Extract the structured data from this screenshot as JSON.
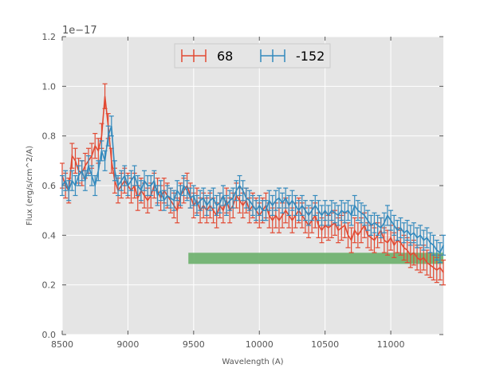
{
  "chart_data": {
    "type": "line",
    "title": "",
    "xlabel": "Wavelength (A)",
    "ylabel": "Flux (erg/s/cm^2/A)",
    "y_offset_text": "1e−17",
    "xlim": [
      8500,
      11400
    ],
    "ylim": [
      0.0,
      1.2
    ],
    "x_ticks": [
      8500,
      9000,
      9500,
      10000,
      10500,
      11000
    ],
    "x_tick_labels": [
      "8500",
      "9000",
      "9500",
      "10000",
      "10500",
      "11000"
    ],
    "y_ticks": [
      0.0,
      0.2,
      0.4,
      0.6,
      0.8,
      1.0,
      1.2
    ],
    "y_tick_labels": [
      "0.0",
      "0.2",
      "0.4",
      "0.6",
      "0.8",
      "1.0",
      "1.2"
    ],
    "grid": true,
    "legend_position": "top-center",
    "band": {
      "x_start": 9460,
      "x_end": 11400,
      "y": 0.307,
      "color": "#6aaf6a"
    },
    "series": [
      {
        "name": "68",
        "color": "#e24a33",
        "error": 0.05,
        "x": [
          8500,
          8525,
          8550,
          8575,
          8600,
          8625,
          8650,
          8675,
          8700,
          8725,
          8750,
          8775,
          8800,
          8825,
          8850,
          8875,
          8900,
          8925,
          8950,
          8975,
          9000,
          9025,
          9050,
          9075,
          9100,
          9125,
          9150,
          9175,
          9200,
          9225,
          9250,
          9275,
          9300,
          9325,
          9350,
          9375,
          9400,
          9425,
          9450,
          9475,
          9500,
          9525,
          9550,
          9575,
          9600,
          9625,
          9650,
          9675,
          9700,
          9725,
          9750,
          9775,
          9800,
          9825,
          9850,
          9875,
          9900,
          9925,
          9950,
          9975,
          10000,
          10025,
          10050,
          10075,
          10100,
          10125,
          10150,
          10175,
          10200,
          10225,
          10250,
          10275,
          10300,
          10325,
          10350,
          10375,
          10400,
          10425,
          10450,
          10475,
          10500,
          10525,
          10550,
          10575,
          10600,
          10625,
          10650,
          10675,
          10700,
          10725,
          10750,
          10775,
          10800,
          10825,
          10850,
          10875,
          10900,
          10925,
          10950,
          10975,
          11000,
          11025,
          11050,
          11075,
          11100,
          11125,
          11150,
          11175,
          11200,
          11225,
          11250,
          11275,
          11300,
          11325,
          11350,
          11375,
          11400
        ],
        "y": [
          0.64,
          0.6,
          0.58,
          0.72,
          0.7,
          0.66,
          0.65,
          0.68,
          0.7,
          0.72,
          0.76,
          0.74,
          0.8,
          0.96,
          0.84,
          0.7,
          0.62,
          0.58,
          0.6,
          0.62,
          0.6,
          0.58,
          0.6,
          0.55,
          0.58,
          0.56,
          0.54,
          0.56,
          0.6,
          0.58,
          0.55,
          0.58,
          0.56,
          0.54,
          0.52,
          0.5,
          0.56,
          0.58,
          0.6,
          0.56,
          0.52,
          0.54,
          0.5,
          0.52,
          0.5,
          0.52,
          0.5,
          0.48,
          0.52,
          0.5,
          0.54,
          0.5,
          0.52,
          0.56,
          0.54,
          0.52,
          0.54,
          0.5,
          0.52,
          0.5,
          0.48,
          0.5,
          0.52,
          0.48,
          0.46,
          0.48,
          0.46,
          0.48,
          0.5,
          0.48,
          0.46,
          0.48,
          0.5,
          0.48,
          0.46,
          0.44,
          0.46,
          0.48,
          0.44,
          0.42,
          0.44,
          0.43,
          0.44,
          0.45,
          0.42,
          0.43,
          0.44,
          0.4,
          0.38,
          0.42,
          0.4,
          0.42,
          0.44,
          0.4,
          0.39,
          0.38,
          0.4,
          0.42,
          0.38,
          0.37,
          0.39,
          0.36,
          0.38,
          0.37,
          0.35,
          0.34,
          0.32,
          0.33,
          0.31,
          0.3,
          0.31,
          0.29,
          0.28,
          0.27,
          0.26,
          0.27,
          0.25
        ]
      },
      {
        "name": "-152",
        "color": "#348abd",
        "error": 0.04,
        "x": [
          8500,
          8525,
          8550,
          8575,
          8600,
          8625,
          8650,
          8675,
          8700,
          8725,
          8750,
          8775,
          8800,
          8825,
          8850,
          8875,
          8900,
          8925,
          8950,
          8975,
          9000,
          9025,
          9050,
          9075,
          9100,
          9125,
          9150,
          9175,
          9200,
          9225,
          9250,
          9275,
          9300,
          9325,
          9350,
          9375,
          9400,
          9425,
          9450,
          9475,
          9500,
          9525,
          9550,
          9575,
          9600,
          9625,
          9650,
          9675,
          9700,
          9725,
          9750,
          9775,
          9800,
          9825,
          9850,
          9875,
          9900,
          9925,
          9950,
          9975,
          10000,
          10025,
          10050,
          10075,
          10100,
          10125,
          10150,
          10175,
          10200,
          10225,
          10250,
          10275,
          10300,
          10325,
          10350,
          10375,
          10400,
          10425,
          10450,
          10475,
          10500,
          10525,
          10550,
          10575,
          10600,
          10625,
          10650,
          10675,
          10700,
          10725,
          10750,
          10775,
          10800,
          10825,
          10850,
          10875,
          10900,
          10925,
          10950,
          10975,
          11000,
          11025,
          11050,
          11075,
          11100,
          11125,
          11150,
          11175,
          11200,
          11225,
          11250,
          11275,
          11300,
          11325,
          11350,
          11375,
          11400
        ],
        "y": [
          0.6,
          0.62,
          0.58,
          0.62,
          0.6,
          0.64,
          0.66,
          0.62,
          0.68,
          0.64,
          0.6,
          0.66,
          0.74,
          0.7,
          0.8,
          0.84,
          0.66,
          0.6,
          0.62,
          0.64,
          0.6,
          0.62,
          0.64,
          0.6,
          0.58,
          0.62,
          0.6,
          0.6,
          0.62,
          0.56,
          0.58,
          0.54,
          0.56,
          0.55,
          0.54,
          0.58,
          0.56,
          0.6,
          0.58,
          0.55,
          0.56,
          0.52,
          0.54,
          0.55,
          0.52,
          0.54,
          0.55,
          0.52,
          0.53,
          0.56,
          0.52,
          0.54,
          0.55,
          0.58,
          0.6,
          0.58,
          0.55,
          0.54,
          0.52,
          0.5,
          0.52,
          0.5,
          0.5,
          0.54,
          0.52,
          0.54,
          0.55,
          0.53,
          0.55,
          0.52,
          0.54,
          0.52,
          0.5,
          0.52,
          0.5,
          0.48,
          0.5,
          0.52,
          0.5,
          0.48,
          0.5,
          0.48,
          0.5,
          0.49,
          0.48,
          0.5,
          0.49,
          0.5,
          0.48,
          0.52,
          0.5,
          0.49,
          0.48,
          0.46,
          0.44,
          0.45,
          0.44,
          0.43,
          0.45,
          0.48,
          0.46,
          0.44,
          0.42,
          0.43,
          0.41,
          0.42,
          0.4,
          0.41,
          0.39,
          0.4,
          0.38,
          0.39,
          0.37,
          0.36,
          0.34,
          0.33,
          0.36
        ]
      }
    ]
  }
}
